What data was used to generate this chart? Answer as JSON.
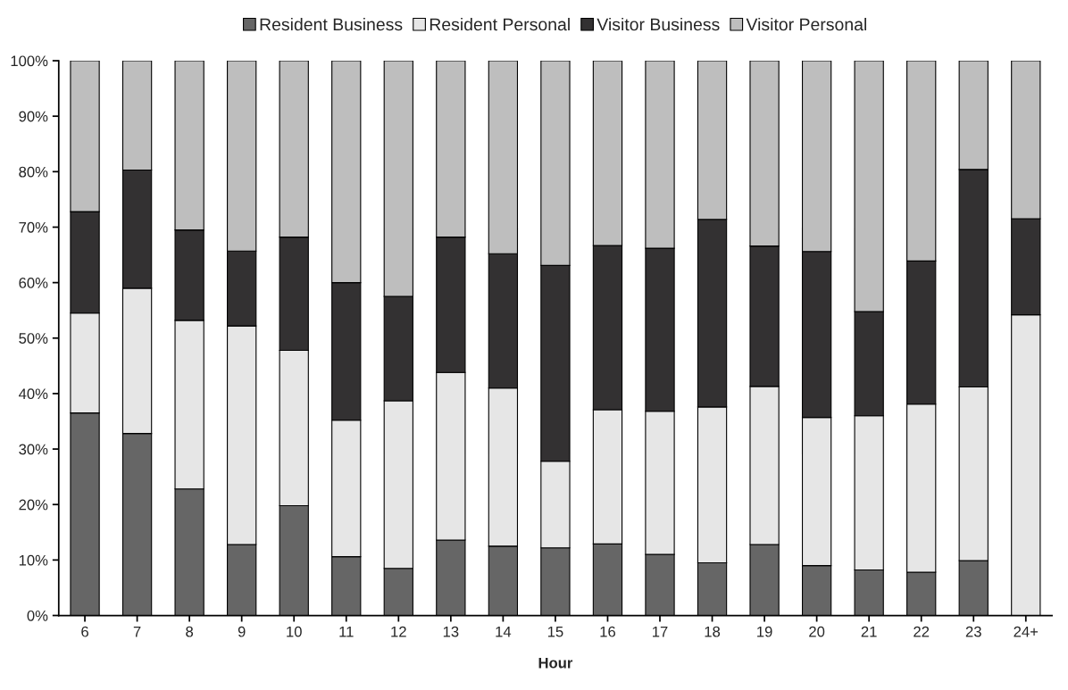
{
  "chart_data": {
    "type": "bar",
    "stacked": true,
    "xlabel": "Hour",
    "legend": "top",
    "grid": false,
    "categories": [
      "6",
      "7",
      "8",
      "9",
      "10",
      "11",
      "12",
      "13",
      "14",
      "15",
      "16",
      "17",
      "18",
      "19",
      "20",
      "21",
      "22",
      "23",
      "24+"
    ],
    "ylim": [
      0,
      100
    ],
    "yticks": [
      {
        "value": 0,
        "label": "0%"
      },
      {
        "value": 10,
        "label": "10%"
      },
      {
        "value": 20,
        "label": "20%"
      },
      {
        "value": 30,
        "label": "30%"
      },
      {
        "value": 40,
        "label": "40%"
      },
      {
        "value": 50,
        "label": "50%"
      },
      {
        "value": 60,
        "label": "60%"
      },
      {
        "value": 70,
        "label": "70%"
      },
      {
        "value": 80,
        "label": "80%"
      },
      {
        "value": 90,
        "label": "90%"
      },
      {
        "value": 100,
        "label": "100%"
      }
    ],
    "series": [
      {
        "name": "Resident Business",
        "color": "#666666",
        "values": [
          36.5,
          32.8,
          22.8,
          12.8,
          19.8,
          10.6,
          8.5,
          13.6,
          12.5,
          12.2,
          12.9,
          11.0,
          9.5,
          12.8,
          9.0,
          8.2,
          7.8,
          9.9,
          0
        ]
      },
      {
        "name": "Resident Personal",
        "color": "#e6e6e6",
        "values": [
          18.0,
          26.2,
          30.4,
          39.4,
          28.0,
          24.6,
          30.2,
          30.2,
          28.5,
          15.6,
          24.2,
          25.8,
          28.1,
          28.5,
          26.7,
          27.8,
          30.3,
          31.3,
          54.2
        ]
      },
      {
        "name": "Visitor Business",
        "color": "#333132",
        "values": [
          18.3,
          21.3,
          16.3,
          13.5,
          20.4,
          24.8,
          18.8,
          24.4,
          24.2,
          35.3,
          29.6,
          29.4,
          33.8,
          25.3,
          29.9,
          18.8,
          25.8,
          39.2,
          17.3
        ]
      },
      {
        "name": "Visitor Personal",
        "color": "#bebebe",
        "values": [
          27.2,
          19.7,
          30.5,
          34.3,
          31.8,
          40.0,
          42.5,
          31.8,
          34.8,
          36.9,
          33.3,
          33.8,
          28.6,
          33.4,
          34.4,
          45.2,
          36.1,
          19.6,
          28.5
        ]
      }
    ]
  }
}
